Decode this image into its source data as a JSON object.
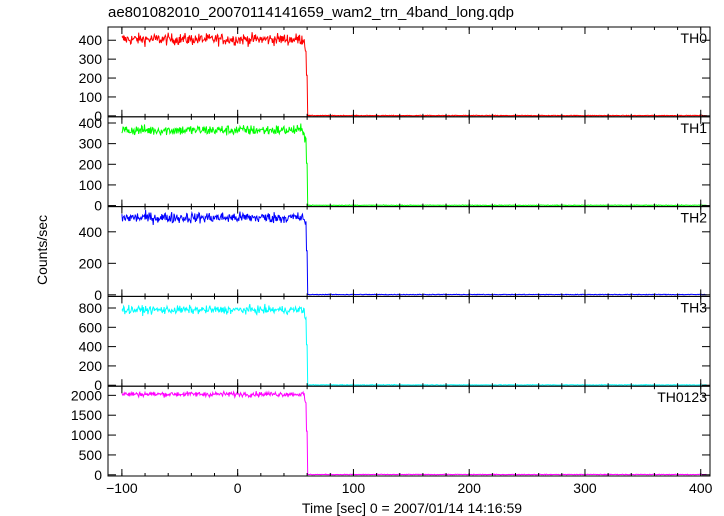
{
  "chart_data": {
    "type": "line",
    "title": "ae801082010_20070114141659_wam2_trn_4band_long.qdp",
    "xlabel": "Time [sec] 0 = 2007/01/14 14:16:59",
    "ylabel": "Counts/sec",
    "xlim": [
      -112,
      408
    ],
    "x_ticks": [
      -100,
      0,
      100,
      200,
      300,
      400
    ],
    "grid": false,
    "drop_time": 60,
    "panels": [
      {
        "name": "TH0",
        "color": "#ff0000",
        "level": 405,
        "noise": 22,
        "spike": 215,
        "ylim": [
          -5,
          470
        ],
        "yticks": [
          0,
          100,
          200,
          300,
          400
        ]
      },
      {
        "name": "TH1",
        "color": "#00ff00",
        "level": 365,
        "noise": 18,
        "spike": 205,
        "ylim": [
          -5,
          430
        ],
        "yticks": [
          0,
          100,
          200,
          300,
          400
        ]
      },
      {
        "name": "TH2",
        "color": "#0000ff",
        "level": 490,
        "noise": 25,
        "spike": 280,
        "ylim": [
          -10,
          560
        ],
        "yticks": [
          0,
          200,
          400
        ]
      },
      {
        "name": "TH3",
        "color": "#00ffff",
        "level": 780,
        "noise": 30,
        "spike": 420,
        "ylim": [
          -10,
          920
        ],
        "yticks": [
          0,
          200,
          400,
          600,
          800
        ]
      },
      {
        "name": "TH0123",
        "color": "#ff00ff",
        "level": 2030,
        "noise": 45,
        "spike": 1100,
        "ylim": [
          -30,
          2230
        ],
        "yticks": [
          0,
          500,
          1000,
          1500,
          2000
        ]
      }
    ]
  }
}
